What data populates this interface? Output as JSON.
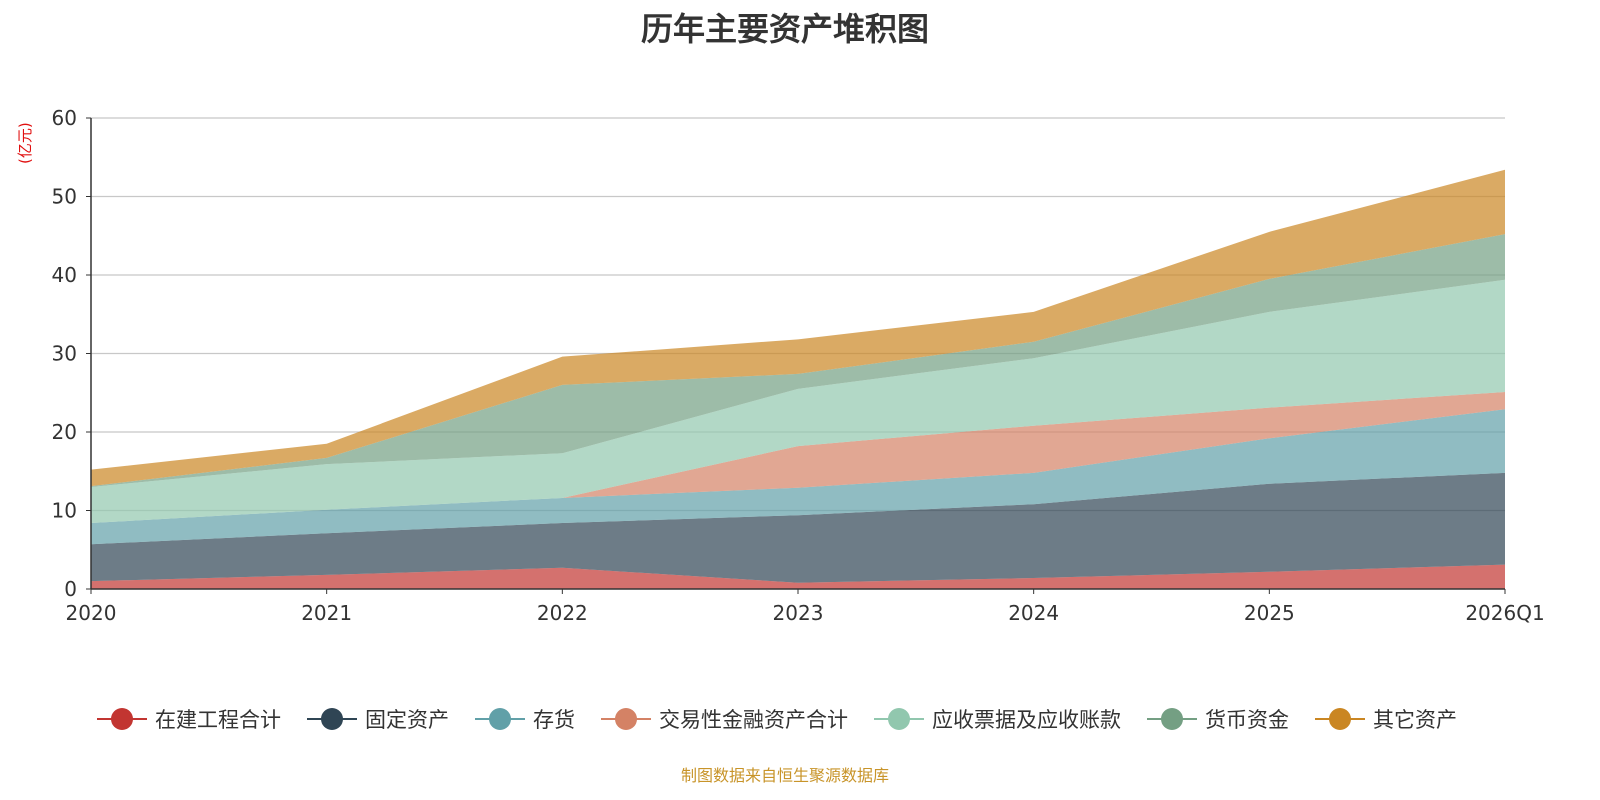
{
  "chart_data": {
    "type": "area",
    "stacked": true,
    "title": "历年主要资产堆积图",
    "ylabel": "(亿元)",
    "xlabel": "",
    "ylim": [
      0,
      60
    ],
    "yticks": [
      "0",
      "10",
      "20",
      "30",
      "40",
      "50",
      "60"
    ],
    "grid": true,
    "legend_position": "bottom",
    "categories": [
      "2020",
      "2021",
      "2022",
      "2023",
      "2024",
      "2025",
      "2026Q1"
    ],
    "series": [
      {
        "name": "在建工程合计",
        "color": "#c23531",
        "values": [
          1.0,
          1.8,
          2.7,
          0.8,
          1.4,
          2.2,
          3.1
        ]
      },
      {
        "name": "固定资产",
        "color": "#2f4554",
        "values": [
          4.7,
          5.3,
          5.7,
          8.6,
          9.4,
          11.2,
          11.7
        ]
      },
      {
        "name": "存货",
        "color": "#61a0a8",
        "values": [
          2.7,
          3.0,
          3.2,
          3.5,
          4.0,
          5.8,
          8.1
        ]
      },
      {
        "name": "交易性金融资产合计",
        "color": "#d48265",
        "values": [
          0,
          0,
          0,
          5.3,
          6.0,
          3.9,
          2.2
        ]
      },
      {
        "name": "应收票据及应收账款",
        "color": "#91c7ae",
        "values": [
          4.6,
          5.8,
          5.7,
          7.3,
          8.6,
          12.2,
          14.3
        ]
      },
      {
        "name": "货币资金",
        "color": "#749f83",
        "values": [
          0.1,
          0.8,
          8.7,
          1.9,
          2.1,
          4.2,
          5.8
        ]
      },
      {
        "name": "其它资产",
        "color": "#ca8622",
        "values": [
          2.1,
          1.8,
          3.6,
          4.4,
          3.8,
          6.0,
          8.2
        ]
      }
    ],
    "source": "制图数据来自恒生聚源数据库"
  }
}
